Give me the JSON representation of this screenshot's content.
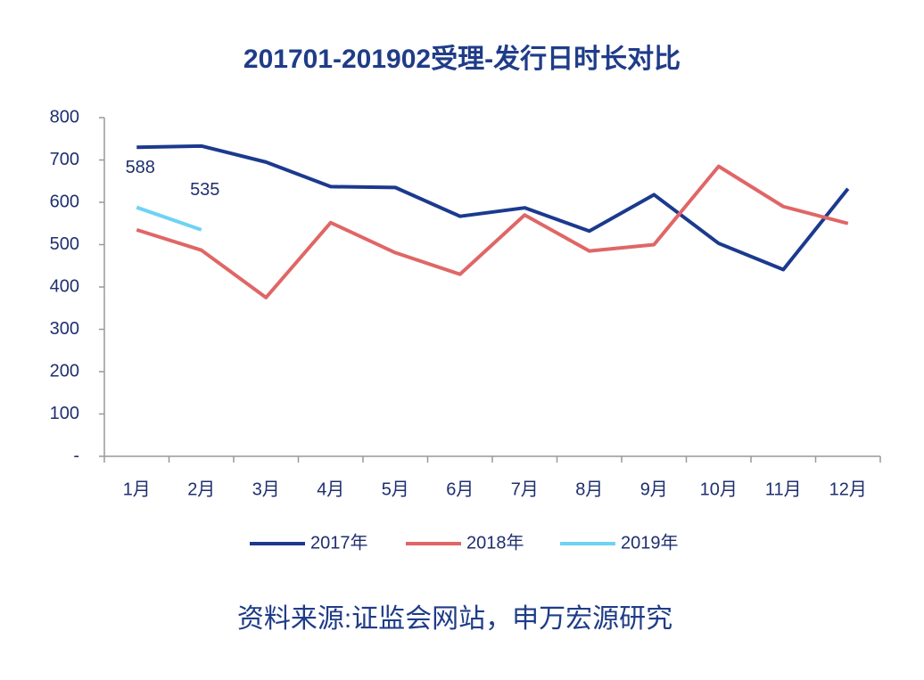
{
  "chart_data": {
    "type": "line",
    "title": "201701-201902受理-发行日时长对比",
    "source": "资料来源:证监会网站，申万宏源研究",
    "categories": [
      "1月",
      "2月",
      "3月",
      "4月",
      "5月",
      "6月",
      "7月",
      "8月",
      "9月",
      "10月",
      "11月",
      "12月"
    ],
    "series": [
      {
        "name": "2017年",
        "color": "#1b3a8e",
        "values": [
          730,
          733,
          695,
          637,
          635,
          567,
          587,
          532,
          618,
          503,
          441,
          632
        ]
      },
      {
        "name": "2018年",
        "color": "#e06666",
        "values": [
          535,
          487,
          375,
          552,
          481,
          430,
          570,
          485,
          500,
          685,
          590,
          550
        ]
      },
      {
        "name": "2019年",
        "color": "#6ed3f3",
        "values": [
          588,
          535,
          null,
          null,
          null,
          null,
          null,
          null,
          null,
          null,
          null,
          null
        ],
        "show_labels": true
      }
    ],
    "ylim": [
      0,
      800
    ],
    "yticks": [
      {
        "value": 0,
        "label": "-"
      },
      100,
      200,
      300,
      400,
      500,
      600,
      700,
      800
    ],
    "grid": false,
    "legend": "bottom"
  }
}
